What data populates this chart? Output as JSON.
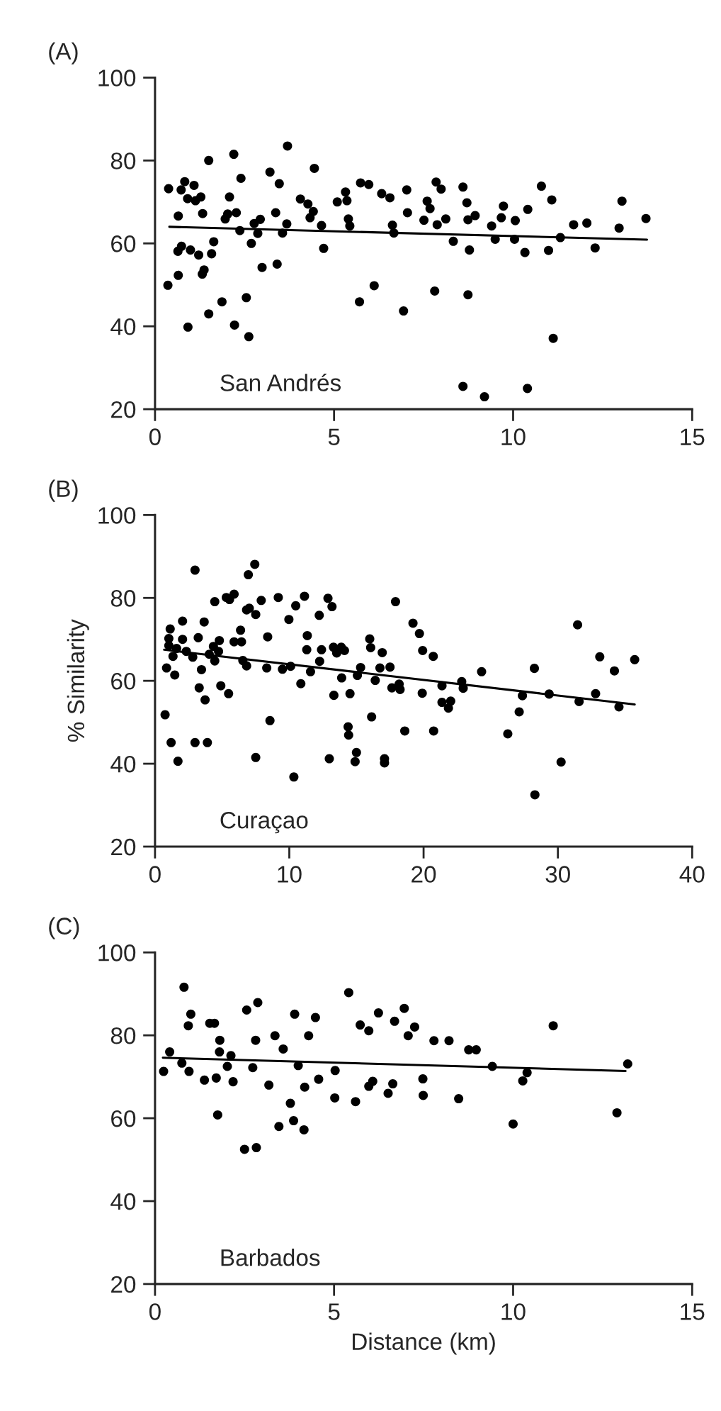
{
  "chart_data": [
    {
      "type": "scatter",
      "title": "(A)",
      "xlim": [
        0,
        15
      ],
      "ylim": [
        20,
        100
      ],
      "xticks": [
        0,
        5,
        10,
        15
      ],
      "yticks": [
        20,
        40,
        60,
        80,
        100
      ],
      "grid": false,
      "legend": false,
      "annotations": [
        "San Andrés"
      ],
      "series": [
        {
          "marker": "circle",
          "color": "#000000",
          "x": [
            0.38,
            0.73,
            0.83,
            1.09,
            0.91,
            1.13,
            1.28,
            0.65,
            1.33,
            2.08,
            2.4,
            3.21,
            3.47,
            1.96,
            2.03,
            2.27,
            2.77,
            2.94,
            3.37,
            3.68,
            2.37,
            2.87,
            3.56,
            4.06,
            4.27,
            4.42,
            4.33,
            4.45,
            4.65,
            5.09,
            5.32,
            5.36,
            5.4,
            5.44,
            5.74,
            5.97,
            6.33,
            6.56,
            6.63,
            6.67,
            7.03,
            7.05,
            7.6,
            7.68,
            7.51,
            7.88,
            7.85,
            7.99,
            8.12,
            8.33,
            8.6,
            8.71,
            8.74,
            8.94,
            8.78,
            9.4,
            9.5,
            9.67,
            9.73,
            10.04,
            10.06,
            10.41,
            10.33,
            10.79,
            11.08,
            10.99,
            11.32,
            11.69,
            12.06,
            12.29,
            12.96,
            13.04,
            13.71,
            0.64,
            0.74,
            0.99,
            1.22,
            1.64,
            1.58,
            0.36,
            0.65,
            1.37,
            1.32,
            0.92,
            1.5,
            1.87,
            2.22,
            2.55,
            2.62,
            2.69,
            2.99,
            3.41,
            4.71,
            5.71,
            6.12,
            6.94,
            7.81,
            8.74,
            11.12,
            1.5,
            2.2,
            3.7,
            8.6,
            9.2,
            10.4
          ],
          "values": [
            73.2,
            72.9,
            74.9,
            74.0,
            70.8,
            70.3,
            71.2,
            66.6,
            67.2,
            71.2,
            75.7,
            77.2,
            74.4,
            65.9,
            67.1,
            67.4,
            64.8,
            65.8,
            67.4,
            64.7,
            63.1,
            62.4,
            62.5,
            70.7,
            69.5,
            67.7,
            66.2,
            78.1,
            64.3,
            70.0,
            72.4,
            70.3,
            65.9,
            64.2,
            74.6,
            74.2,
            72.0,
            71.0,
            64.4,
            62.5,
            72.9,
            67.4,
            70.2,
            68.4,
            65.6,
            64.5,
            74.8,
            73.1,
            65.9,
            60.5,
            73.6,
            69.8,
            65.7,
            66.7,
            58.4,
            64.2,
            61.0,
            66.2,
            69.0,
            61.0,
            65.5,
            68.2,
            57.8,
            73.8,
            70.5,
            58.3,
            61.4,
            64.5,
            64.9,
            58.9,
            63.7,
            70.2,
            66.0,
            58.1,
            59.3,
            58.4,
            57.2,
            60.4,
            57.5,
            49.9,
            52.3,
            53.6,
            52.6,
            39.8,
            43.0,
            45.9,
            40.3,
            46.9,
            37.5,
            60.0,
            54.2,
            55.0,
            58.8,
            45.9,
            49.8,
            43.7,
            48.5,
            47.6,
            37.1,
            80,
            81.5,
            83.5,
            25.5,
            23,
            25
          ]
        },
        {
          "type": "line",
          "marker": "none",
          "color": "#000000",
          "x": [
            0.4,
            13.74
          ],
          "values": [
            64.0,
            60.9
          ]
        }
      ]
    },
    {
      "type": "scatter",
      "title": "(B)",
      "ylabel": "% Similarity",
      "xlim": [
        0,
        40
      ],
      "ylim": [
        20,
        100
      ],
      "xticks": [
        0,
        10,
        20,
        30,
        40
      ],
      "yticks": [
        20,
        40,
        60,
        80,
        100
      ],
      "grid": false,
      "legend": false,
      "annotations": [
        "Curaçao"
      ],
      "series": [
        {
          "marker": "circle",
          "color": "#000000",
          "x": [
            2.98,
            7.43,
            6.95,
            0.75,
            1.2,
            1.71,
            2.98,
            3.9,
            0.86,
            1.47,
            1.03,
            1.13,
            1.03,
            1.61,
            1.34,
            2.05,
            2.05,
            2.33,
            2.81,
            3.22,
            3.66,
            3.46,
            3.29,
            3.73,
            4.04,
            4.35,
            4.45,
            4.79,
            4.73,
            4.45,
            4.9,
            5.48,
            5.31,
            5.55,
            5.89,
            5.89,
            6.44,
            6.37,
            6.54,
            6.82,
            6.82,
            7.02,
            7.5,
            7.5,
            7.91,
            8.32,
            8.39,
            8.56,
            9.18,
            9.49,
            9.97,
            10.1,
            10.48,
            10.34,
            10.86,
            11.13,
            11.34,
            11.3,
            11.58,
            12.23,
            12.26,
            12.4,
            12.88,
            13.18,
            12.98,
            13.32,
            13.29,
            13.53,
            13.87,
            14.11,
            13.9,
            14.52,
            14.38,
            14.42,
            15.0,
            14.9,
            15.07,
            15.31,
            15.99,
            16.06,
            16.13,
            16.4,
            16.75,
            16.92,
            17.09,
            17.09,
            17.5,
            17.64,
            17.91,
            18.18,
            18.25,
            18.6,
            19.21,
            19.69,
            19.93,
            19.9,
            20.72,
            20.75,
            21.37,
            21.37,
            21.85,
            22.02,
            22.84,
            22.95,
            24.32,
            26.27,
            27.12,
            27.36,
            28.25,
            28.29,
            29.35,
            30.24,
            31.47,
            31.58,
            32.81,
            33.12,
            34.21,
            34.55,
            35.72
          ],
          "values": [
            86.7,
            88.1,
            85.6,
            51.8,
            45.1,
            40.6,
            45.1,
            45.1,
            63.1,
            61.4,
            68.5,
            72.5,
            70.2,
            67.8,
            65.9,
            74.4,
            70.0,
            67.1,
            65.7,
            70.4,
            74.2,
            62.7,
            58.3,
            55.4,
            66.4,
            68.3,
            64.8,
            69.7,
            67.1,
            79.1,
            58.8,
            56.9,
            80.1,
            79.6,
            80.9,
            69.4,
            69.4,
            72.2,
            64.9,
            63.6,
            77.1,
            77.5,
            76.0,
            41.5,
            79.4,
            63.1,
            70.6,
            50.4,
            80.1,
            62.8,
            74.8,
            63.5,
            78.1,
            36.8,
            59.3,
            80.4,
            70.9,
            67.5,
            62.2,
            75.8,
            64.7,
            67.5,
            79.9,
            77.9,
            41.2,
            56.5,
            68.1,
            66.7,
            68.1,
            67.3,
            60.7,
            56.9,
            48.9,
            46.9,
            42.7,
            40.5,
            61.3,
            63.2,
            70.1,
            68.0,
            51.3,
            60.1,
            63.1,
            66.8,
            41.2,
            40.2,
            63.3,
            58.3,
            79.1,
            59.2,
            57.9,
            47.9,
            73.9,
            71.4,
            67.3,
            57.0,
            65.9,
            47.9,
            58.8,
            54.8,
            53.4,
            55.1,
            59.8,
            58.2,
            62.2,
            47.2,
            52.5,
            56.4,
            63.0,
            32.5,
            56.8,
            40.4,
            73.5,
            55.0,
            56.9,
            65.8,
            62.4,
            53.7,
            65.1
          ]
        },
        {
          "type": "line",
          "marker": "none",
          "color": "#000000",
          "x": [
            0.68,
            35.72
          ],
          "values": [
            67.5,
            54.3
          ]
        }
      ]
    },
    {
      "type": "scatter",
      "title": "(C)",
      "xlabel": "Distance (km)",
      "xlim": [
        0,
        15
      ],
      "ylim": [
        20,
        100
      ],
      "xticks": [
        0,
        5,
        10,
        15
      ],
      "yticks": [
        20,
        40,
        60,
        80,
        100
      ],
      "grid": false,
      "legend": false,
      "annotations": [
        "Barbados"
      ],
      "series": [
        {
          "marker": "circle",
          "color": "#000000",
          "x": [
            0.81,
            5.41,
            1.0,
            0.93,
            1.53,
            1.66,
            2.56,
            2.87,
            3.9,
            4.48,
            1.81,
            2.81,
            3.35,
            4.29,
            3.58,
            0.41,
            1.8,
            2.12,
            0.75,
            0.24,
            0.95,
            1.38,
            1.71,
            2.02,
            2.18,
            2.73,
            3.18,
            4.0,
            4.18,
            4.57,
            5.03,
            5.02,
            5.6,
            5.73,
            5.97,
            6.24,
            6.69,
            6.96,
            7.07,
            7.25,
            7.79,
            8.21,
            8.76,
            8.97,
            9.42,
            11.12,
            13.2,
            12.9,
            10.0,
            10.27,
            10.39,
            8.48,
            7.48,
            7.49,
            6.64,
            6.51,
            5.97,
            6.08,
            3.78,
            3.87,
            3.46,
            4.16,
            1.75,
            2.5,
            2.83
          ],
          "values": [
            91.6,
            90.3,
            85.1,
            82.3,
            82.9,
            82.9,
            86.1,
            87.9,
            85.1,
            84.3,
            78.8,
            78.8,
            79.9,
            79.9,
            76.7,
            76.0,
            76.0,
            75.1,
            73.3,
            71.3,
            71.3,
            69.2,
            69.7,
            72.5,
            68.8,
            72.2,
            68.0,
            72.7,
            67.5,
            69.4,
            71.5,
            64.9,
            64.0,
            82.5,
            81.1,
            85.4,
            83.4,
            86.5,
            79.9,
            82.0,
            78.7,
            78.7,
            76.5,
            76.5,
            72.5,
            82.3,
            73.1,
            61.3,
            58.6,
            69.0,
            71.0,
            64.7,
            69.5,
            65.5,
            68.3,
            66.0,
            67.7,
            68.9,
            63.6,
            59.4,
            58.0,
            57.2,
            60.8,
            52.5,
            52.9
          ]
        },
        {
          "type": "line",
          "marker": "none",
          "color": "#000000",
          "x": [
            0.22,
            13.14
          ],
          "values": [
            74.6,
            71.4
          ]
        }
      ]
    }
  ]
}
